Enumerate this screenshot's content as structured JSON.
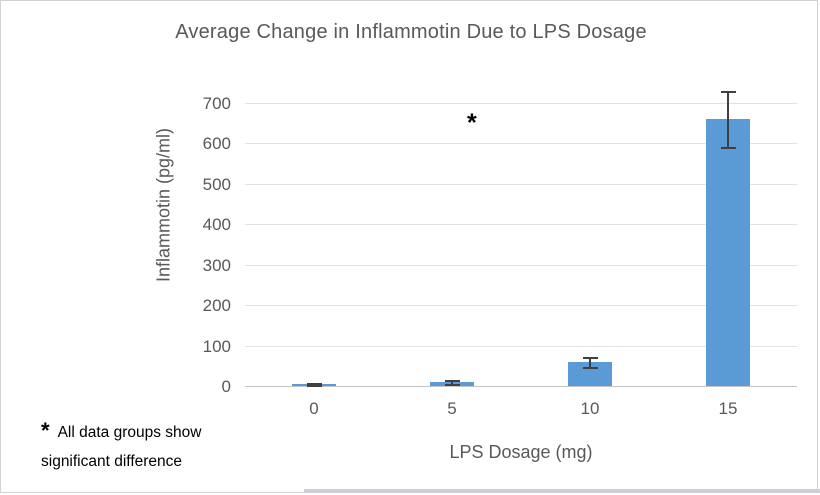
{
  "chart_data": {
    "type": "bar",
    "title": "Average Change in Inflammotin Due to LPS Dosage",
    "xlabel": "LPS Dosage (mg)",
    "ylabel": "Inflammotin (pg/ml)",
    "categories": [
      "0",
      "5",
      "10",
      "15"
    ],
    "values": [
      5,
      10,
      60,
      660
    ],
    "error_values": [
      3,
      4,
      13,
      70
    ],
    "yticks": [
      0,
      100,
      200,
      300,
      400,
      500,
      600,
      700
    ],
    "ylim": [
      0,
      700
    ],
    "grid": true,
    "legend": "none",
    "bar_color": "#5b9bd5",
    "error_bar_color": "#404040",
    "gridline_color": "#e2e2e2",
    "axis_line_color": "#c6c6c6",
    "text_color": "#595959",
    "significance_marker": "*",
    "annotation": {
      "marker": "*",
      "line1": "All data groups show",
      "line2": "significant difference"
    }
  }
}
